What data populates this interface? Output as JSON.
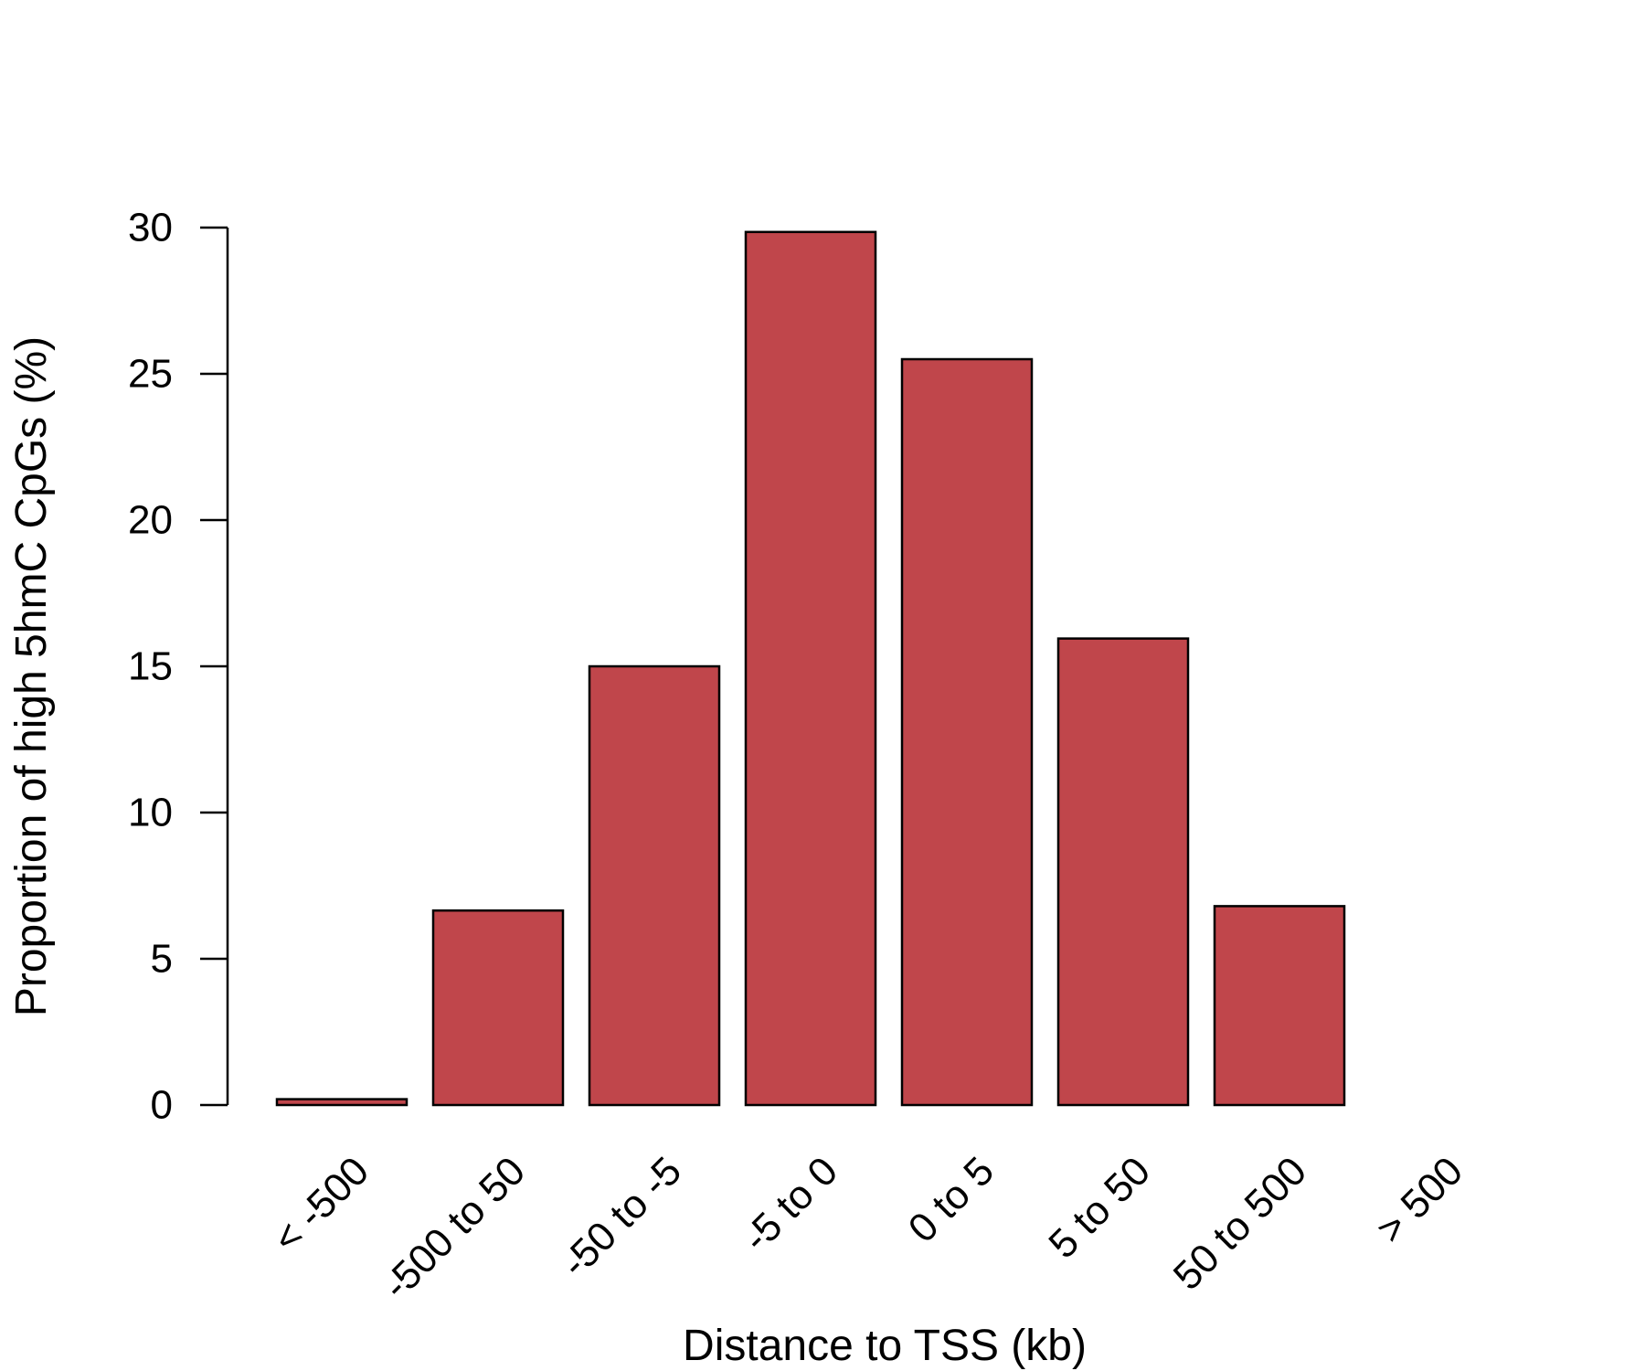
{
  "chart_data": {
    "type": "bar",
    "title": "",
    "xlabel": "Distance to TSS (kb)",
    "ylabel": "Proportion of high 5hmC CpGs (%)",
    "categories": [
      "< -500",
      "-500 to 50",
      "-50 to -5",
      "-5 to 0",
      "0 to 5",
      "5 to 50",
      "50 to 500",
      "> 500"
    ],
    "values": [
      0.2,
      6.65,
      15.0,
      29.85,
      25.5,
      15.95,
      6.8,
      0.0
    ],
    "ylim": [
      0,
      30
    ],
    "yticks": [
      0,
      5,
      10,
      15,
      20,
      25,
      30
    ],
    "grid": false,
    "legend": "none",
    "colors": {
      "bar_fill": "#c0464b",
      "bar_stroke": "#000000",
      "axis": "#000000"
    }
  }
}
